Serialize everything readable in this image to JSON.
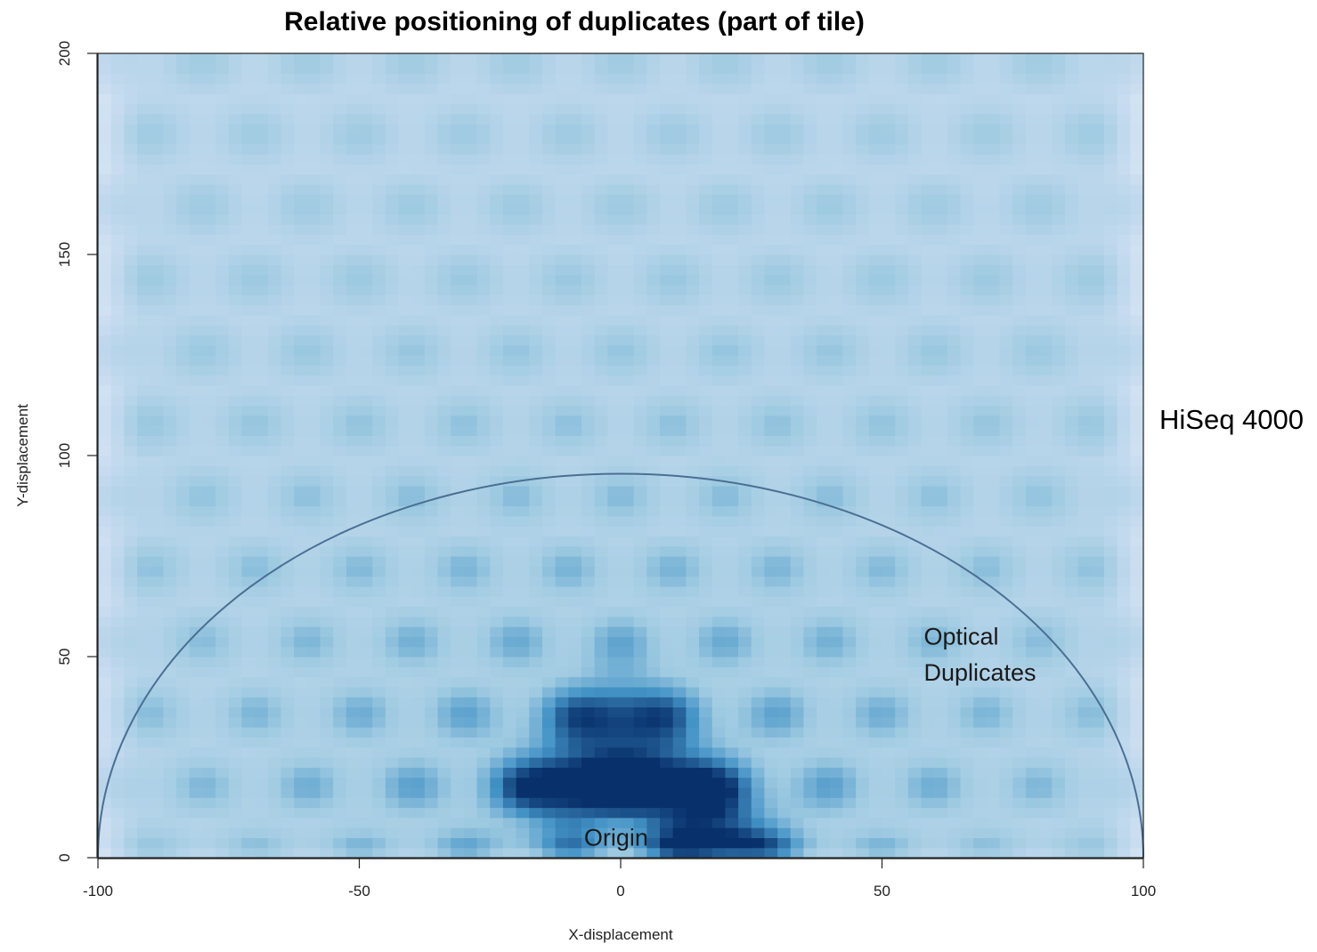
{
  "chart_data": {
    "type": "heatmap",
    "title": "Relative positioning of duplicates (part of tile)",
    "xlabel": "X-displacement",
    "ylabel": "Y-displacement",
    "xlim": [
      -100,
      100
    ],
    "ylim": [
      0,
      200
    ],
    "x_ticks": [
      -100,
      -50,
      0,
      50,
      100
    ],
    "y_ticks": [
      0,
      50,
      100,
      150,
      200
    ],
    "colormap": [
      "#f4f8fd",
      "#c6dbef",
      "#9ecae1",
      "#4292c6",
      "#08306b"
    ],
    "grid": false,
    "lattice": {
      "row_spacing_y": 18,
      "col_spacing_x": 20,
      "even_row_x_offset": 10,
      "odd_row_x_offset": 0
    },
    "hotspots": [
      {
        "x": -10,
        "y": 18,
        "intensity": 1.0
      },
      {
        "x": 10,
        "y": 18,
        "intensity": 1.0
      },
      {
        "x": 20,
        "y": 2,
        "intensity": 1.0
      },
      {
        "x": 0,
        "y": 35,
        "intensity": 0.8
      }
    ],
    "circle": {
      "center_x": 0,
      "center_y": 0,
      "radius": 100,
      "color": "#4a6f93"
    },
    "annotations": [
      {
        "text": "Optical",
        "x": 58,
        "y": 53
      },
      {
        "text": "Duplicates",
        "x": 58,
        "y": 44
      },
      {
        "text": "Origin",
        "x": -7,
        "y": 3
      }
    ],
    "side_label": "HiSeq 4000"
  }
}
